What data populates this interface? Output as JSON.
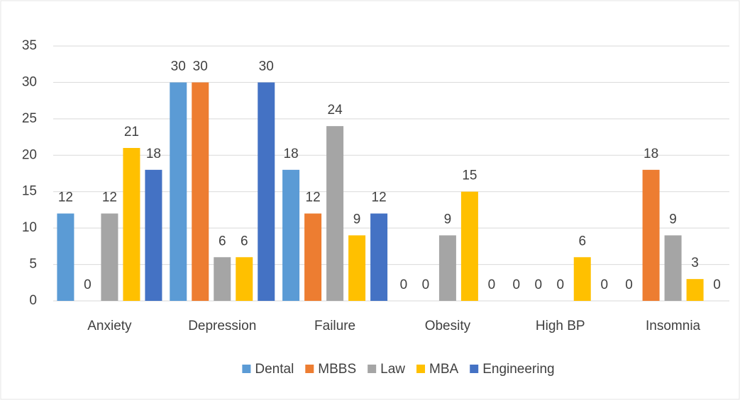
{
  "chart_data": {
    "type": "bar",
    "categories": [
      "Anxiety",
      "Depression",
      "Failure",
      "Obesity",
      "High BP",
      "Insomnia"
    ],
    "series": [
      {
        "name": "Dental",
        "color": "#5b9bd5",
        "values": [
          12,
          30,
          18,
          0,
          0,
          0
        ]
      },
      {
        "name": "MBBS",
        "color": "#ed7d31",
        "values": [
          0,
          30,
          12,
          0,
          0,
          18
        ]
      },
      {
        "name": "Law",
        "color": "#a5a5a5",
        "values": [
          12,
          6,
          24,
          9,
          0,
          9
        ]
      },
      {
        "name": "MBA",
        "color": "#ffc000",
        "values": [
          21,
          6,
          9,
          15,
          6,
          3
        ]
      },
      {
        "name": "Engineering",
        "color": "#4472c4",
        "values": [
          18,
          30,
          12,
          0,
          0,
          0
        ]
      }
    ],
    "ylim": [
      0,
      35
    ],
    "yticks": [
      0,
      5,
      10,
      15,
      20,
      25,
      30,
      35
    ],
    "grid": true,
    "legend": "bottom"
  }
}
